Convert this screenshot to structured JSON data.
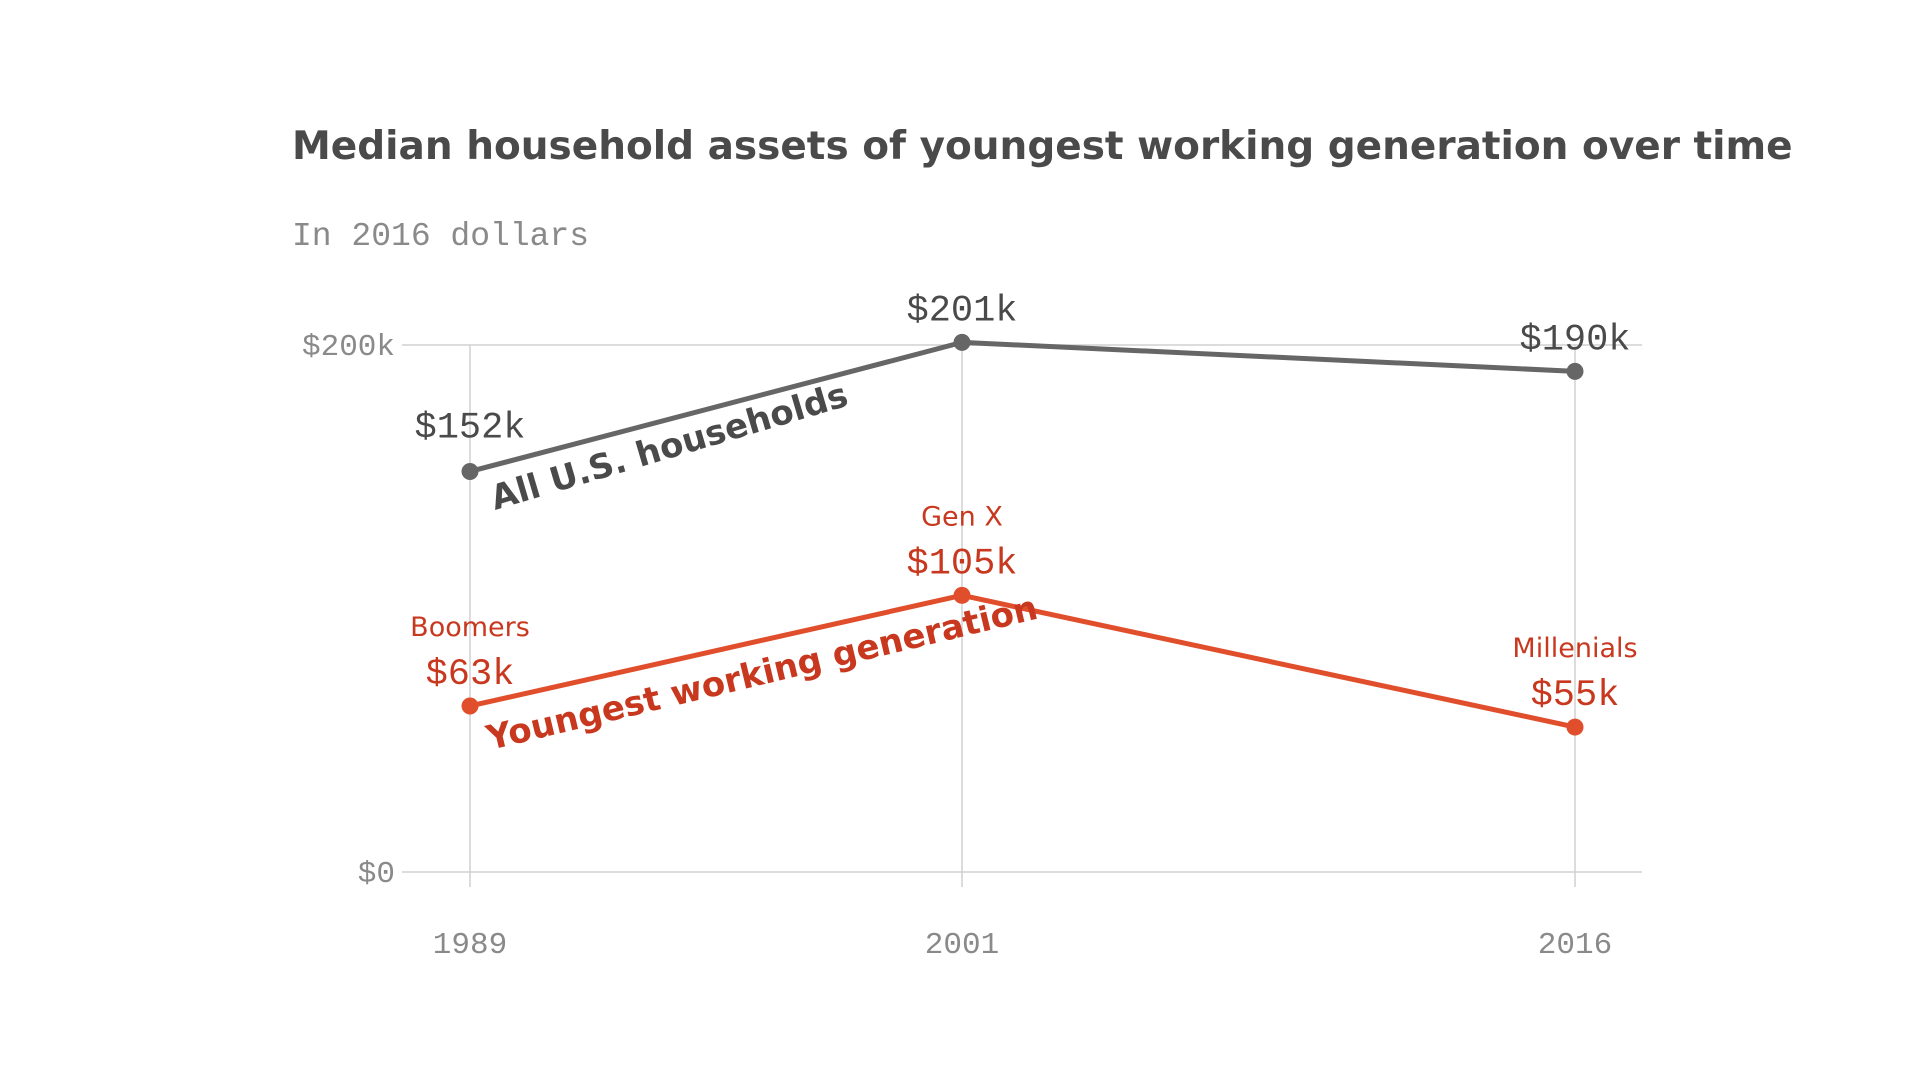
{
  "chart_data": {
    "type": "line",
    "title": "Median household assets of youngest working generation over time",
    "subtitle": "In 2016 dollars",
    "x": [
      1989,
      2001,
      2016
    ],
    "x_tick_labels": [
      "1989",
      "2001",
      "2016"
    ],
    "ylim": [
      0,
      200
    ],
    "y_unit": "thousands of dollars",
    "y_ticks": [
      0,
      200
    ],
    "y_tick_labels": [
      "$0",
      "$200k"
    ],
    "grid": true,
    "legend": "none (series labelled inline along lines)",
    "series": [
      {
        "name": "All U.S. households",
        "color": "#666666",
        "values": [
          152,
          201,
          190
        ],
        "value_labels": [
          "$152k",
          "$201k",
          "$190k"
        ],
        "point_labels": [
          "",
          "",
          ""
        ]
      },
      {
        "name": "Youngest working generation",
        "color": "#e04e2c",
        "label_color": "#c8381f",
        "values": [
          63,
          105,
          55
        ],
        "value_labels": [
          "$63k",
          "$105k",
          "$55k"
        ],
        "point_labels": [
          "Boomers",
          "Gen X",
          "Millenials"
        ]
      }
    ]
  }
}
